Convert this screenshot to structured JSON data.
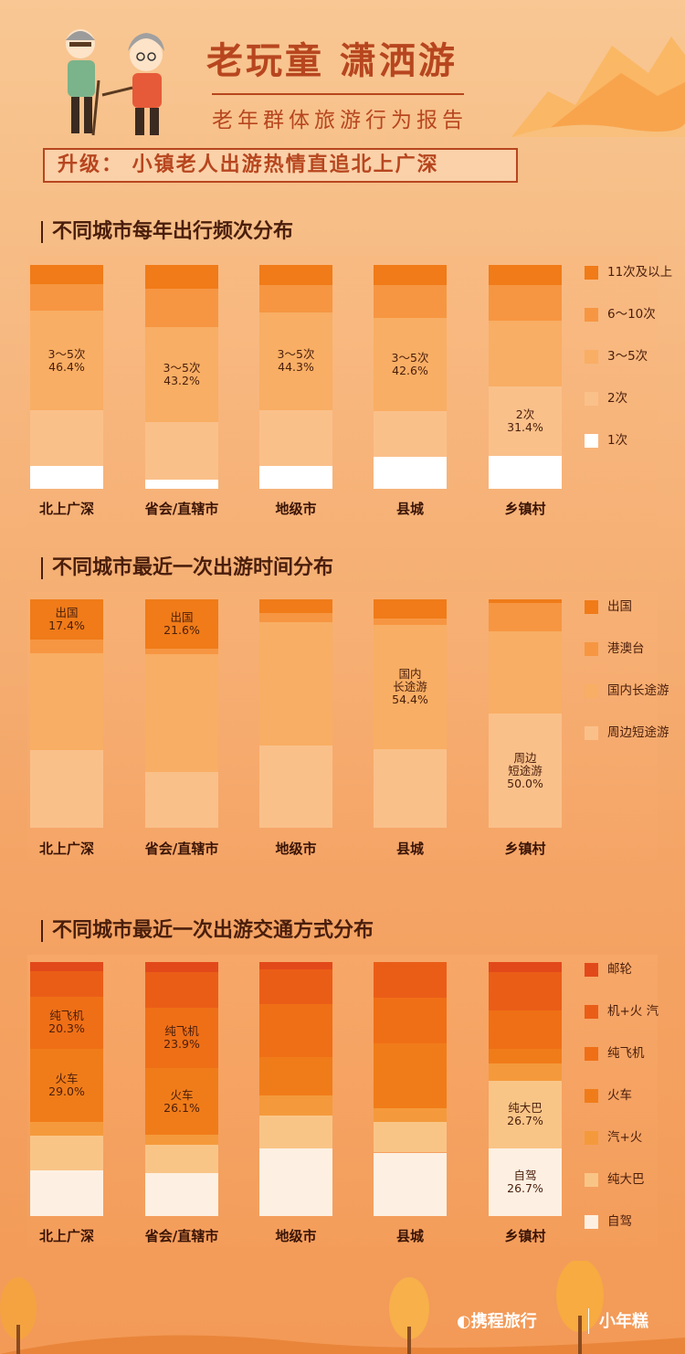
{
  "header": {
    "title": "老玩童 潇洒游",
    "subtitle": "老年群体旅游行为报告",
    "upgrade": "升级： 小镇老人出游热情直追北上广深"
  },
  "colors": {
    "cruise": "#e2491a",
    "plane_train": "#ea5d17",
    "plane": "#ef6f16",
    "train": "#f07c19",
    "car_train": "#f49a3c",
    "bus": "#f9c587",
    "self_drive": "#fdf0e2",
    "freq_11": "#f07b18",
    "freq_6_10": "#f69642",
    "freq_3_5": "#f8ae64",
    "freq_2": "#fac08a",
    "freq_1": "#ffffff"
  },
  "chart_data": [
    {
      "type": "bar",
      "stacked": true,
      "title": "不同城市每年出行频次分布",
      "categories": [
        "北上广深",
        "省会/直辖市",
        "地级市",
        "县城",
        "乡镇村"
      ],
      "series": [
        {
          "name": "1次",
          "color": "#ffffff",
          "values": [
            10.5,
            4.0,
            10.5,
            14.5,
            14.5
          ]
        },
        {
          "name": "2次",
          "color": "#fac08a",
          "values": [
            25.8,
            26.5,
            25.5,
            20.9,
            31.4
          ]
        },
        {
          "name": "3～5次",
          "color": "#f8ae64",
          "values": [
            46.4,
            43.2,
            44.3,
            42.6,
            29.0
          ]
        },
        {
          "name": "6～10次",
          "color": "#f69642",
          "values": [
            12.3,
            17.3,
            12.7,
            15.0,
            16.1
          ]
        },
        {
          "name": "11次及以上",
          "color": "#f07b18",
          "values": [
            9.0,
            11.0,
            9.0,
            9.0,
            9.0
          ]
        }
      ],
      "labels": [
        {
          "bar": 0,
          "series": 2,
          "text": "3～5次\n46.4%"
        },
        {
          "bar": 1,
          "series": 2,
          "text": "3～5次\n43.2%"
        },
        {
          "bar": 2,
          "series": 2,
          "text": "3～5次\n44.3%"
        },
        {
          "bar": 3,
          "series": 2,
          "text": "3～5次\n42.6%"
        },
        {
          "bar": 4,
          "series": 1,
          "text": "2次\n31.4%"
        }
      ],
      "ylim": [
        0,
        100
      ]
    },
    {
      "type": "bar",
      "stacked": true,
      "title": "不同城市最近一次出游时间分布",
      "categories": [
        "北上广深",
        "省会/直辖市",
        "地级市",
        "县城",
        "乡镇村"
      ],
      "series": [
        {
          "name": "周边短途游",
          "color": "#fac08a",
          "values": [
            34.0,
            24.4,
            36.0,
            34.4,
            50.0
          ]
        },
        {
          "name": "国内长途游",
          "color": "#f8ae64",
          "values": [
            42.6,
            51.5,
            54.0,
            54.4,
            36.0
          ]
        },
        {
          "name": "港澳台",
          "color": "#f69642",
          "values": [
            6.0,
            2.5,
            4.0,
            2.7,
            12.5
          ]
        },
        {
          "name": "出国",
          "color": "#f07b18",
          "values": [
            17.4,
            21.6,
            6.0,
            8.5,
            1.5
          ]
        }
      ],
      "labels": [
        {
          "bar": 0,
          "series": 3,
          "text": "出国\n17.4%"
        },
        {
          "bar": 1,
          "series": 3,
          "text": "出国\n21.6%"
        },
        {
          "bar": 3,
          "series": 1,
          "text": "国内\n长途游\n54.4%"
        },
        {
          "bar": 4,
          "series": 0,
          "text": "周边\n短途游\n50.0%"
        }
      ],
      "ylim": [
        0,
        100
      ]
    },
    {
      "type": "bar",
      "stacked": true,
      "title": "不同城市最近一次出游交通方式分布",
      "categories": [
        "北上广深",
        "省会/直辖市",
        "地级市",
        "县城",
        "乡镇村"
      ],
      "series": [
        {
          "name": "自驾",
          "color": "#fdf0e2",
          "values": [
            18.0,
            17.0,
            26.5,
            25.0,
            26.7
          ]
        },
        {
          "name": "纯大巴",
          "color": "#f9c587",
          "values": [
            13.5,
            11.0,
            13.0,
            12.0,
            26.7
          ]
        },
        {
          "name": "汽+火",
          "color": "#f49a3c",
          "values": [
            5.5,
            4.0,
            8.0,
            5.5,
            6.5
          ]
        },
        {
          "name": "火车",
          "color": "#f07c19",
          "values": [
            29.0,
            26.1,
            15.0,
            25.5,
            6.0
          ]
        },
        {
          "name": "纯飞机",
          "color": "#ef6f16",
          "values": [
            20.3,
            23.9,
            21.0,
            18.0,
            15.0
          ]
        },
        {
          "name": "机+火 汽",
          "color": "#ea5d17",
          "values": [
            10.0,
            14.0,
            13.5,
            14.0,
            15.0
          ]
        },
        {
          "name": "邮轮",
          "color": "#e2491a",
          "values": [
            3.7,
            4.0,
            3.0,
            0.0,
            4.1
          ]
        }
      ],
      "labels": [
        {
          "bar": 0,
          "series": 4,
          "text": "纯飞机\n20.3%"
        },
        {
          "bar": 0,
          "series": 3,
          "text": "火车\n29.0%"
        },
        {
          "bar": 1,
          "series": 4,
          "text": "纯飞机\n23.9%"
        },
        {
          "bar": 1,
          "series": 3,
          "text": "火车\n26.1%"
        },
        {
          "bar": 4,
          "series": 1,
          "text": "纯大巴\n26.7%"
        },
        {
          "bar": 4,
          "series": 0,
          "text": "自驾\n26.7%"
        }
      ],
      "ylim": [
        0,
        100
      ]
    }
  ],
  "footer": {
    "brand_ctrip": "携程旅行",
    "brand_xng": "小年糕"
  }
}
